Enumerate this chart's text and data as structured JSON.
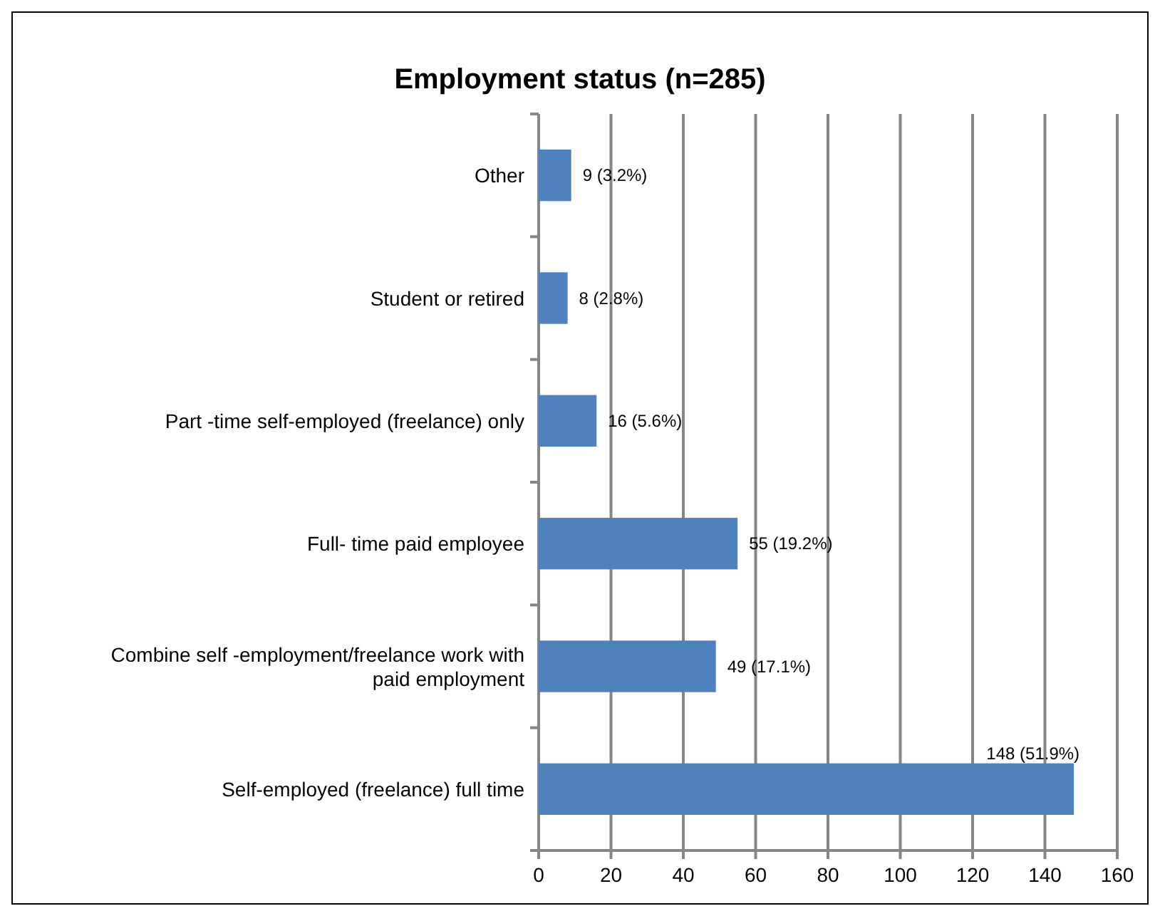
{
  "chart_data": {
    "type": "bar",
    "orientation": "horizontal",
    "title": "Employment status (n=285)",
    "categories": [
      "Other",
      "Student or retired",
      "Part -time self-employed (freelance) only",
      "Full- time paid employee",
      "Combine self -employment/freelance work with paid employment",
      "Self-employed (freelance) full time"
    ],
    "values": [
      9,
      8,
      16,
      55,
      49,
      148
    ],
    "value_labels": [
      "9 (3.2%)",
      "8 (2.8%)",
      "16 (5.6%)",
      "55 (19.2%)",
      "49 (17.1%)",
      "148 (51.9%)"
    ],
    "color": "#4f81bd",
    "xlim": [
      0,
      160
    ],
    "xticks": [
      0,
      20,
      40,
      60,
      80,
      100,
      120,
      140,
      160
    ],
    "grid": "x"
  }
}
